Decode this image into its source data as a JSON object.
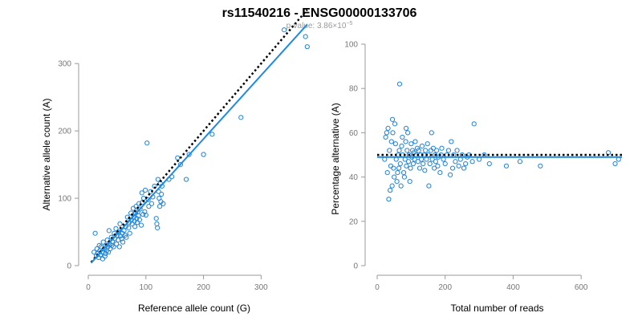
{
  "title": "rs11540216 - ENSG00000133706",
  "subtitle": {
    "prefix": "p-value: 3.86×10",
    "exponent": "−5"
  },
  "colors": {
    "points": "#1f83d6",
    "fit": "#1f8be0",
    "reference": "#000000"
  },
  "chart_data": [
    {
      "type": "scatter",
      "xlabel": "Reference allele count (G)",
      "ylabel": "Alternative allele count (A)",
      "xlim": [
        0,
        390
      ],
      "ylim": [
        0,
        330
      ],
      "x_ticks": [
        0,
        100,
        200,
        300
      ],
      "y_ticks": [
        0,
        100,
        200,
        300
      ],
      "fit_line": {
        "x": [
          5,
          380
        ],
        "y": [
          4,
          358
        ]
      },
      "reference_line": {
        "x": [
          5,
          380
        ],
        "y": [
          5,
          380
        ]
      },
      "points": [
        [
          10,
          20
        ],
        [
          12,
          48
        ],
        [
          14,
          15
        ],
        [
          15,
          25
        ],
        [
          16,
          18
        ],
        [
          18,
          12
        ],
        [
          19,
          30
        ],
        [
          20,
          22
        ],
        [
          21,
          16
        ],
        [
          22,
          28
        ],
        [
          24,
          20
        ],
        [
          25,
          10
        ],
        [
          26,
          35
        ],
        [
          28,
          25
        ],
        [
          29,
          14
        ],
        [
          30,
          18
        ],
        [
          31,
          30
        ],
        [
          32,
          22
        ],
        [
          33,
          38
        ],
        [
          34,
          28
        ],
        [
          35,
          20
        ],
        [
          36,
          52
        ],
        [
          37,
          32
        ],
        [
          38,
          25
        ],
        [
          40,
          42
        ],
        [
          41,
          30
        ],
        [
          42,
          36
        ],
        [
          44,
          28
        ],
        [
          45,
          48
        ],
        [
          46,
          40
        ],
        [
          48,
          55
        ],
        [
          49,
          32
        ],
        [
          50,
          45
        ],
        [
          52,
          38
        ],
        [
          53,
          50
        ],
        [
          54,
          28
        ],
        [
          55,
          62
        ],
        [
          56,
          44
        ],
        [
          58,
          40
        ],
        [
          59,
          48
        ],
        [
          60,
          35
        ],
        [
          62,
          52
        ],
        [
          64,
          45
        ],
        [
          65,
          58
        ],
        [
          66,
          42
        ],
        [
          68,
          72
        ],
        [
          70,
          56
        ],
        [
          71,
          64
        ],
        [
          72,
          48
        ],
        [
          74,
          78
        ],
        [
          75,
          68
        ],
        [
          76,
          62
        ],
        [
          78,
          85
        ],
        [
          79,
          72
        ],
        [
          80,
          66
        ],
        [
          81,
          58
        ],
        [
          82,
          78
        ],
        [
          83,
          88
        ],
        [
          84,
          70
        ],
        [
          85,
          64
        ],
        [
          86,
          80
        ],
        [
          87,
          74
        ],
        [
          88,
          92
        ],
        [
          89,
          68
        ],
        [
          90,
          84
        ],
        [
          92,
          60
        ],
        [
          93,
          108
        ],
        [
          94,
          94
        ],
        [
          95,
          76
        ],
        [
          96,
          100
        ],
        [
          98,
          80
        ],
        [
          99,
          112
        ],
        [
          100,
          75
        ],
        [
          102,
          182
        ],
        [
          104,
          98
        ],
        [
          105,
          88
        ],
        [
          108,
          110
        ],
        [
          110,
          92
        ],
        [
          112,
          102
        ],
        [
          115,
          118
        ],
        [
          118,
          70
        ],
        [
          119,
          62
        ],
        [
          120,
          56
        ],
        [
          121,
          128
        ],
        [
          122,
          110
        ],
        [
          123,
          100
        ],
        [
          124,
          88
        ],
        [
          125,
          122
        ],
        [
          126,
          95
        ],
        [
          127,
          106
        ],
        [
          128,
          118
        ],
        [
          130,
          92
        ],
        [
          140,
          128
        ],
        [
          145,
          132
        ],
        [
          155,
          160
        ],
        [
          160,
          150
        ],
        [
          170,
          128
        ],
        [
          175,
          165
        ],
        [
          200,
          165
        ],
        [
          215,
          195
        ],
        [
          265,
          220
        ],
        [
          340,
          350
        ],
        [
          377,
          340
        ],
        [
          380,
          325
        ]
      ]
    },
    {
      "type": "scatter",
      "xlabel": "Total number of reads",
      "ylabel": "Percentage alternative (A)",
      "xlim": [
        0,
        720
      ],
      "ylim": [
        0,
        100
      ],
      "x_ticks": [
        0,
        200,
        400,
        600
      ],
      "y_ticks": [
        0,
        20,
        40,
        60,
        80,
        100
      ],
      "fit_line": {
        "x": [
          0,
          720
        ],
        "y": [
          49,
          49
        ]
      },
      "reference_line": {
        "x": [
          0,
          720
        ],
        "y": [
          50,
          50
        ]
      },
      "points": [
        [
          22,
          48
        ],
        [
          25,
          58
        ],
        [
          28,
          60
        ],
        [
          30,
          42
        ],
        [
          32,
          62
        ],
        [
          34,
          30
        ],
        [
          36,
          52
        ],
        [
          38,
          34
        ],
        [
          40,
          45
        ],
        [
          42,
          56
        ],
        [
          44,
          36
        ],
        [
          45,
          66
        ],
        [
          46,
          60
        ],
        [
          48,
          44
        ],
        [
          50,
          40
        ],
        [
          52,
          64
        ],
        [
          54,
          55
        ],
        [
          56,
          48
        ],
        [
          58,
          38
        ],
        [
          60,
          42
        ],
        [
          62,
          50
        ],
        [
          64,
          44
        ],
        [
          65,
          52
        ],
        [
          66,
          82
        ],
        [
          68,
          46
        ],
        [
          70,
          36
        ],
        [
          72,
          54
        ],
        [
          74,
          58
        ],
        [
          75,
          50
        ],
        [
          78,
          42
        ],
        [
          80,
          40
        ],
        [
          82,
          48
        ],
        [
          84,
          56
        ],
        [
          85,
          62
        ],
        [
          86,
          45
        ],
        [
          88,
          52
        ],
        [
          90,
          60
        ],
        [
          92,
          47
        ],
        [
          94,
          50
        ],
        [
          96,
          38
        ],
        [
          98,
          44
        ],
        [
          100,
          55
        ],
        [
          102,
          49
        ],
        [
          104,
          52
        ],
        [
          106,
          46
        ],
        [
          108,
          51
        ],
        [
          110,
          48
        ],
        [
          112,
          56
        ],
        [
          115,
          50
        ],
        [
          118,
          53
        ],
        [
          120,
          47
        ],
        [
          122,
          52
        ],
        [
          125,
          44
        ],
        [
          128,
          50
        ],
        [
          130,
          48
        ],
        [
          132,
          54
        ],
        [
          135,
          46
        ],
        [
          138,
          50
        ],
        [
          140,
          43
        ],
        [
          142,
          52
        ],
        [
          145,
          48
        ],
        [
          148,
          55
        ],
        [
          150,
          50
        ],
        [
          152,
          36
        ],
        [
          155,
          46
        ],
        [
          158,
          52
        ],
        [
          160,
          60
        ],
        [
          162,
          48
        ],
        [
          165,
          53
        ],
        [
          168,
          44
        ],
        [
          170,
          50
        ],
        [
          172,
          47
        ],
        [
          175,
          52
        ],
        [
          178,
          45
        ],
        [
          180,
          49
        ],
        [
          185,
          42
        ],
        [
          188,
          50
        ],
        [
          190,
          53
        ],
        [
          195,
          48
        ],
        [
          200,
          46
        ],
        [
          205,
          50
        ],
        [
          210,
          52
        ],
        [
          215,
          41
        ],
        [
          218,
          56
        ],
        [
          222,
          44
        ],
        [
          225,
          50
        ],
        [
          230,
          47
        ],
        [
          235,
          52
        ],
        [
          240,
          45
        ],
        [
          245,
          48
        ],
        [
          250,
          50
        ],
        [
          255,
          44
        ],
        [
          260,
          46
        ],
        [
          265,
          49
        ],
        [
          270,
          50
        ],
        [
          280,
          47
        ],
        [
          285,
          64
        ],
        [
          300,
          48
        ],
        [
          315,
          50
        ],
        [
          330,
          46
        ],
        [
          380,
          45
        ],
        [
          420,
          47
        ],
        [
          480,
          45
        ],
        [
          680,
          51
        ],
        [
          700,
          46
        ],
        [
          710,
          48
        ]
      ]
    }
  ]
}
